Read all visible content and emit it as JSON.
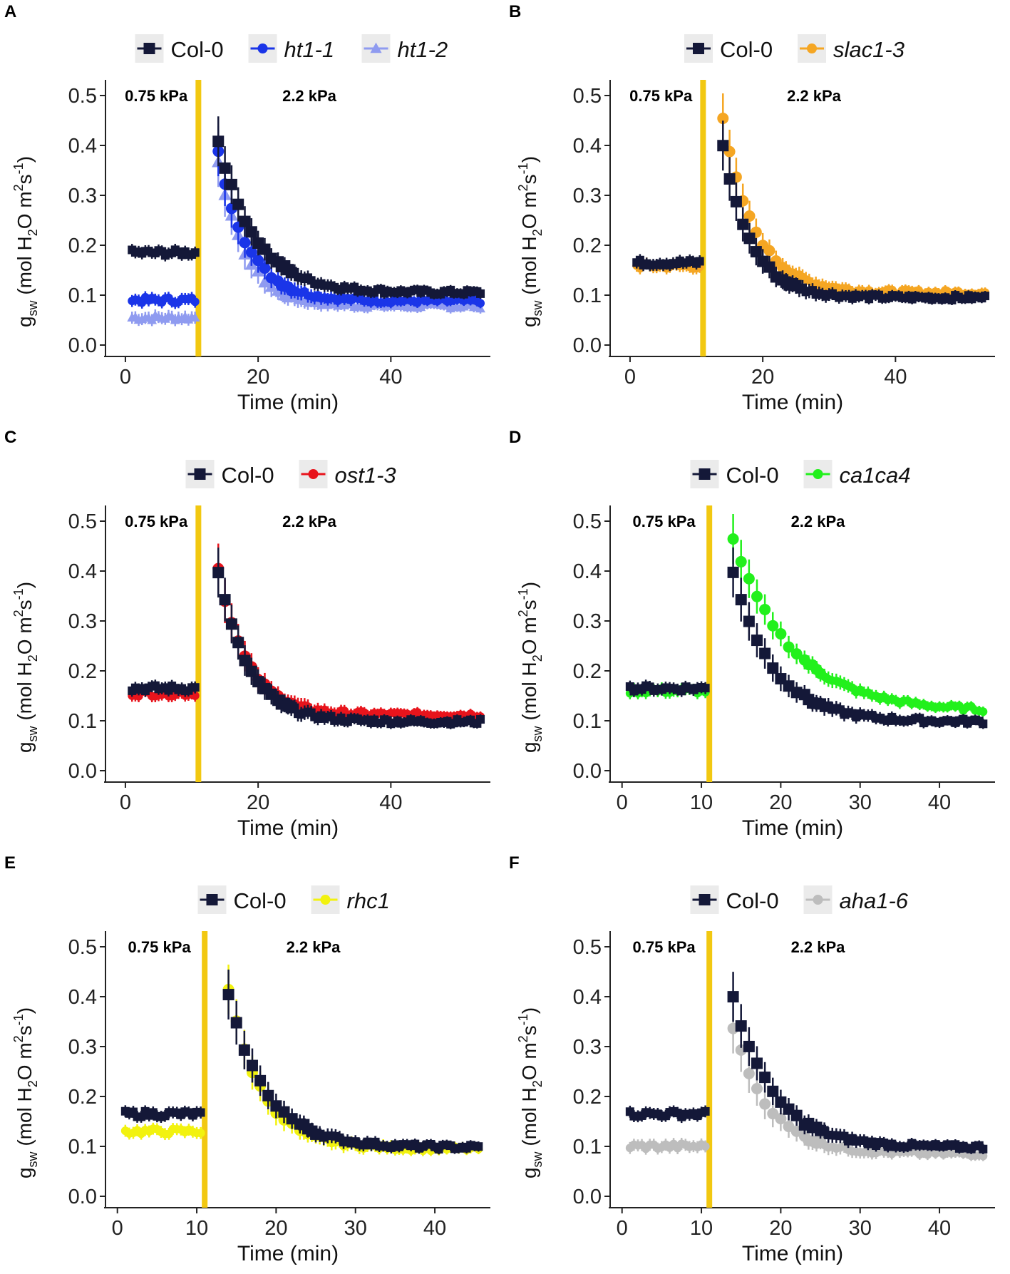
{
  "figure": {
    "y_axis_label": {
      "symbol": "g",
      "subscript": "sw",
      "unit_prefix": "(mol H",
      "sub2": "2",
      "unit_mid": "O m",
      "sup2": "2",
      "unit_s": "s",
      "sup_neg1": "-1",
      "close": ")"
    },
    "x_axis_label": "Time (min)"
  },
  "chart_data": [
    {
      "panel": "A",
      "type": "line",
      "xlabel": "Time (min)",
      "ylabel": "gsw (mol H2O m2s-1)",
      "xlim": [
        -3,
        55
      ],
      "ylim": [
        -0.02,
        0.52
      ],
      "xticks": [
        0,
        20,
        40
      ],
      "yticks": [
        "0.0",
        "0.1",
        "0.2",
        "0.3",
        "0.4",
        "0.5"
      ],
      "transition_time": 11,
      "annotations": [
        "0.75 kPa",
        "2.2 kPa"
      ],
      "legend": [
        {
          "label": "Col-0",
          "italic": false
        },
        {
          "label": "ht1-1",
          "italic": true
        },
        {
          "label": "ht1-2",
          "italic": true
        }
      ],
      "series": [
        {
          "name": "Col-0",
          "color": "#141838",
          "marker": "square",
          "pre": 0.185,
          "peak": 0.41,
          "plateau": 0.105,
          "tau": 5.5
        },
        {
          "name": "ht1-1",
          "color": "#1a35e8",
          "marker": "circle",
          "pre": 0.09,
          "peak": 0.385,
          "plateau": 0.088,
          "tau": 4.5
        },
        {
          "name": "ht1-2",
          "color": "#8f9bf0",
          "marker": "triangle",
          "pre": 0.055,
          "peak": 0.37,
          "plateau": 0.078,
          "tau": 4.0
        }
      ]
    },
    {
      "panel": "B",
      "type": "line",
      "xlabel": "Time (min)",
      "ylabel": "gsw (mol H2O m2s-1)",
      "xlim": [
        -3,
        55
      ],
      "ylim": [
        -0.02,
        0.52
      ],
      "xticks": [
        0,
        20,
        40
      ],
      "yticks": [
        "0.0",
        "0.1",
        "0.2",
        "0.3",
        "0.4",
        "0.5"
      ],
      "transition_time": 11,
      "annotations": [
        "0.75 kPa",
        "2.2 kPa"
      ],
      "legend": [
        {
          "label": "Col-0",
          "italic": false
        },
        {
          "label": "slac1-3",
          "italic": true
        }
      ],
      "series": [
        {
          "name": "Col-0",
          "color": "#141838",
          "marker": "square",
          "pre": 0.165,
          "peak": 0.4,
          "plateau": 0.095,
          "tau": 4.2
        },
        {
          "name": "slac1-3",
          "color": "#f5a623",
          "marker": "circle",
          "pre": 0.158,
          "peak": 0.45,
          "plateau": 0.105,
          "tau": 4.8
        }
      ]
    },
    {
      "panel": "C",
      "type": "line",
      "xlabel": "Time (min)",
      "ylabel": "gsw (mol H2O m2s-1)",
      "xlim": [
        -3,
        55
      ],
      "ylim": [
        -0.02,
        0.52
      ],
      "xticks": [
        0,
        20,
        40
      ],
      "yticks": [
        "0.0",
        "0.1",
        "0.2",
        "0.3",
        "0.4",
        "0.5"
      ],
      "transition_time": 11,
      "annotations": [
        "0.75 kPa",
        "2.2 kPa"
      ],
      "legend": [
        {
          "label": "Col-0",
          "italic": false
        },
        {
          "label": "ost1-3",
          "italic": true
        }
      ],
      "series": [
        {
          "name": "Col-0",
          "color": "#141838",
          "marker": "square",
          "pre": 0.165,
          "peak": 0.4,
          "plateau": 0.098,
          "tau": 4.5
        },
        {
          "name": "ost1-3",
          "color": "#e8141c",
          "marker": "circle",
          "pre": 0.155,
          "peak": 0.405,
          "plateau": 0.112,
          "tau": 4.3
        }
      ]
    },
    {
      "panel": "D",
      "type": "line",
      "xlabel": "Time (min)",
      "ylabel": "gsw (mol H2O m2s-1)",
      "xlim": [
        -1.5,
        47
      ],
      "ylim": [
        -0.02,
        0.52
      ],
      "xticks": [
        0,
        10,
        20,
        30,
        40
      ],
      "yticks": [
        "0.0",
        "0.1",
        "0.2",
        "0.3",
        "0.4",
        "0.5"
      ],
      "transition_time": 11,
      "annotations": [
        "0.75 kPa",
        "2.2 kPa"
      ],
      "legend": [
        {
          "label": "Col-0",
          "italic": false
        },
        {
          "label": "ca1ca4",
          "italic": true
        }
      ],
      "series": [
        {
          "name": "Col-0",
          "color": "#141838",
          "marker": "square",
          "pre": 0.165,
          "peak": 0.4,
          "plateau": 0.098,
          "tau": 5.0
        },
        {
          "name": "ca1ca4",
          "color": "#22f01c",
          "marker": "circle",
          "pre": 0.16,
          "peak": 0.46,
          "plateau": 0.118,
          "tau": 7.5
        }
      ]
    },
    {
      "panel": "E",
      "type": "line",
      "xlabel": "Time (min)",
      "ylabel": "gsw (mol H2O m2s-1)",
      "xlim": [
        -1.5,
        47
      ],
      "ylim": [
        -0.02,
        0.52
      ],
      "xticks": [
        0,
        10,
        20,
        30,
        40
      ],
      "yticks": [
        "0.0",
        "0.1",
        "0.2",
        "0.3",
        "0.4",
        "0.5"
      ],
      "transition_time": 11,
      "annotations": [
        "0.75 kPa",
        "2.2 kPa"
      ],
      "legend": [
        {
          "label": "Col-0",
          "italic": false
        },
        {
          "label": "rhc1",
          "italic": true
        }
      ],
      "series": [
        {
          "name": "Col-0",
          "color": "#141838",
          "marker": "square",
          "pre": 0.165,
          "peak": 0.4,
          "plateau": 0.098,
          "tau": 4.8
        },
        {
          "name": "rhc1",
          "color": "#f2f20f",
          "marker": "circle",
          "pre": 0.13,
          "peak": 0.415,
          "plateau": 0.095,
          "tau": 4.2
        }
      ]
    },
    {
      "panel": "F",
      "type": "line",
      "xlabel": "Time (min)",
      "ylabel": "gsw (mol H2O m2s-1)",
      "xlim": [
        -1.5,
        47
      ],
      "ylim": [
        -0.02,
        0.52
      ],
      "xticks": [
        0,
        10,
        20,
        30,
        40
      ],
      "yticks": [
        "0.0",
        "0.1",
        "0.2",
        "0.3",
        "0.4",
        "0.5"
      ],
      "transition_time": 11,
      "annotations": [
        "0.75 kPa",
        "2.2 kPa"
      ],
      "legend": [
        {
          "label": "Col-0",
          "italic": false
        },
        {
          "label": "aha1-6",
          "italic": true
        }
      ],
      "series": [
        {
          "name": "Col-0",
          "color": "#141838",
          "marker": "square",
          "pre": 0.165,
          "peak": 0.4,
          "plateau": 0.098,
          "tau": 5.0
        },
        {
          "name": "aha1-6",
          "color": "#bdbdbd",
          "marker": "circle",
          "pre": 0.1,
          "peak": 0.34,
          "plateau": 0.085,
          "tau": 4.5
        }
      ]
    }
  ],
  "colors": {
    "transition_line": "#f2c811",
    "axis": "#222222",
    "legend_key_bg": "#ebebeb"
  }
}
